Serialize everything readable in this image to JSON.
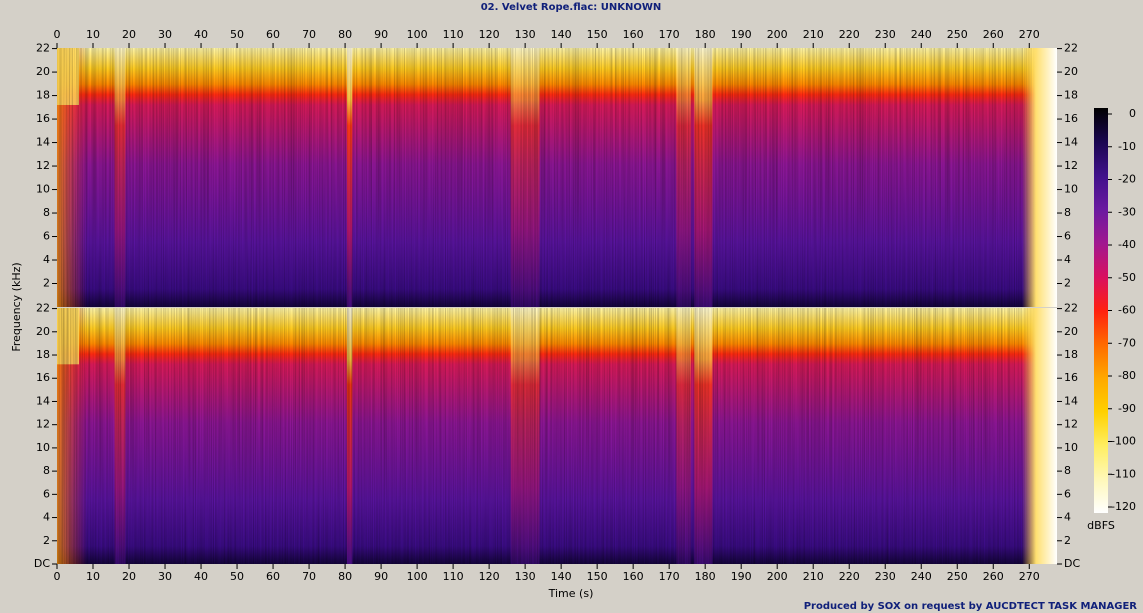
{
  "chart_data": {
    "type": "spectrogram",
    "title": "02. Velvet Rope.flac: UNKNOWN",
    "xlabel": "Time (s)",
    "ylabel": "Frequency (kHz)",
    "xlim": [
      0,
      277.7
    ],
    "xticks": [
      0,
      10,
      20,
      30,
      40,
      50,
      60,
      70,
      80,
      90,
      100,
      110,
      120,
      130,
      140,
      150,
      160,
      170,
      180,
      190,
      200,
      210,
      220,
      230,
      240,
      250,
      260,
      270
    ],
    "panels": [
      {
        "ylim": [
          0,
          22.05
        ],
        "yticks": [
          2,
          4,
          6,
          8,
          10,
          12,
          14,
          16,
          18,
          20,
          22
        ]
      },
      {
        "ylim": [
          0,
          22.05
        ],
        "yticks": [
          {
            "value": 0,
            "label": "DC"
          },
          2,
          4,
          6,
          8,
          10,
          12,
          14,
          16,
          18,
          20,
          22
        ]
      }
    ],
    "colorbar": {
      "label": "dBFS",
      "lim": [
        -120,
        0
      ],
      "ticks": [
        0,
        -10,
        -20,
        -30,
        -40,
        -50,
        -60,
        -70,
        -80,
        -90,
        -100,
        -110,
        -120
      ],
      "colors": [
        "#000000",
        "#1a0650",
        "#40118a",
        "#6a1aa0",
        "#a01890",
        "#d81060",
        "#ff2010",
        "#ff6a00",
        "#ffa800",
        "#ffd000",
        "#ffee60",
        "#fff8b8",
        "#ffffff"
      ]
    },
    "footer": "Produced by SOX on request by AUCDTECT TASK MANAGER"
  }
}
